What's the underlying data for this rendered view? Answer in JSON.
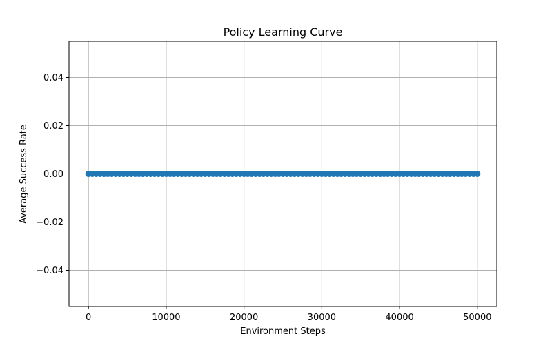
{
  "chart_data": {
    "type": "line",
    "title": "Policy Learning Curve",
    "xlabel": "Environment Steps",
    "ylabel": "Average Success Rate",
    "xlim": [
      -2500,
      52500
    ],
    "ylim": [
      -0.055,
      0.055
    ],
    "x_ticks": [
      0,
      10000,
      20000,
      30000,
      40000,
      50000
    ],
    "x_tick_labels": [
      "0",
      "10000",
      "20000",
      "30000",
      "40000",
      "50000"
    ],
    "y_ticks": [
      -0.04,
      -0.02,
      0.0,
      0.02,
      0.04
    ],
    "y_tick_labels": [
      "−0.04",
      "−0.02",
      "0.00",
      "0.02",
      "0.04"
    ],
    "grid": true,
    "marker": "circle",
    "series": [
      {
        "color": "#1f77b4",
        "x_start": 0,
        "x_end": 50000,
        "x_step": 500,
        "y_constant": 0.0
      }
    ]
  }
}
